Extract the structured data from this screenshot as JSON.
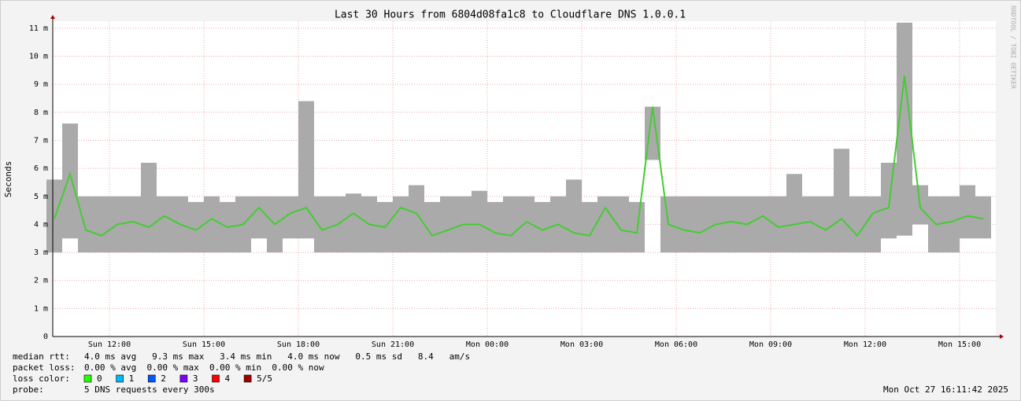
{
  "chart_data": {
    "type": "smoke",
    "title": "Last 30 Hours from 6804d08fa1c8 to Cloudflare DNS 1.0.0.1",
    "y_label": "Seconds",
    "watermark": "RRDTOOL / TOBI OETIKER",
    "x": [
      10.25,
      10.75,
      11.25,
      11.75,
      12.25,
      12.75,
      13.25,
      13.75,
      14.25,
      14.75,
      15.25,
      15.75,
      16.25,
      16.75,
      17.25,
      17.75,
      18.25,
      18.75,
      19.25,
      19.75,
      20.25,
      20.75,
      21.25,
      21.75,
      22.25,
      22.75,
      23.25,
      23.75,
      24.25,
      24.75,
      25.25,
      25.75,
      26.25,
      26.75,
      27.25,
      27.75,
      28.25,
      28.75,
      29.25,
      29.75,
      30.25,
      30.75,
      31.25,
      31.75,
      32.25,
      32.75,
      33.25,
      33.75,
      34.25,
      34.75,
      35.25,
      35.75,
      36.25,
      36.75,
      37.25,
      37.75,
      38.25,
      38.75,
      39.25,
      39.75
    ],
    "values": [
      0.0042,
      0.0058,
      0.0038,
      0.0036,
      0.004,
      0.0041,
      0.0039,
      0.0043,
      0.004,
      0.0038,
      0.0042,
      0.0039,
      0.004,
      0.0046,
      0.004,
      0.0044,
      0.0046,
      0.0038,
      0.004,
      0.0044,
      0.004,
      0.0039,
      0.0046,
      0.0044,
      0.0036,
      0.0038,
      0.004,
      0.004,
      0.0037,
      0.0036,
      0.0041,
      0.0038,
      0.004,
      0.0037,
      0.0036,
      0.0046,
      0.0038,
      0.0037,
      0.0082,
      0.004,
      0.0038,
      0.0037,
      0.004,
      0.0041,
      0.004,
      0.0043,
      0.0039,
      0.004,
      0.0041,
      0.0038,
      0.0042,
      0.0036,
      0.0044,
      0.0046,
      0.0093,
      0.0046,
      0.004,
      0.0041,
      0.0043,
      0.0042
    ],
    "min_values": [
      0.003,
      0.0035,
      0.003,
      0.003,
      0.003,
      0.003,
      0.003,
      0.003,
      0.003,
      0.003,
      0.003,
      0.003,
      0.003,
      0.0035,
      0.003,
      0.0035,
      0.0035,
      0.003,
      0.003,
      0.003,
      0.003,
      0.003,
      0.003,
      0.003,
      0.003,
      0.003,
      0.003,
      0.003,
      0.003,
      0.003,
      0.003,
      0.003,
      0.003,
      0.003,
      0.003,
      0.003,
      0.003,
      0.003,
      0.0063,
      0.003,
      0.003,
      0.003,
      0.003,
      0.003,
      0.003,
      0.003,
      0.003,
      0.003,
      0.003,
      0.003,
      0.003,
      0.003,
      0.003,
      0.0035,
      0.0036,
      0.004,
      0.003,
      0.003,
      0.0035,
      0.0035
    ],
    "max_values": [
      0.0056,
      0.0076,
      0.005,
      0.005,
      0.005,
      0.005,
      0.0062,
      0.005,
      0.005,
      0.0048,
      0.005,
      0.0048,
      0.005,
      0.005,
      0.005,
      0.005,
      0.0084,
      0.005,
      0.005,
      0.0051,
      0.005,
      0.0048,
      0.005,
      0.0054,
      0.0048,
      0.005,
      0.005,
      0.0052,
      0.0048,
      0.005,
      0.005,
      0.0048,
      0.005,
      0.0056,
      0.0048,
      0.005,
      0.005,
      0.0048,
      0.0082,
      0.005,
      0.005,
      0.005,
      0.005,
      0.005,
      0.005,
      0.005,
      0.005,
      0.0058,
      0.005,
      0.005,
      0.0067,
      0.005,
      0.005,
      0.0062,
      0.0112,
      0.0054,
      0.005,
      0.005,
      0.0054,
      0.005
    ],
    "color": "#44cc33",
    "smoke_color": "#aaaaaa",
    "core_color": "#555555",
    "xlim": [
      10.2,
      40.15
    ],
    "xticks": [
      {
        "value": 12,
        "label": "Sun 12:00"
      },
      {
        "value": 15,
        "label": "Sun 15:00"
      },
      {
        "value": 18,
        "label": "Sun 18:00"
      },
      {
        "value": 21,
        "label": "Sun 21:00"
      },
      {
        "value": 24,
        "label": "Mon 00:00"
      },
      {
        "value": 27,
        "label": "Mon 03:00"
      },
      {
        "value": 30,
        "label": "Mon 06:00"
      },
      {
        "value": 33,
        "label": "Mon 09:00"
      },
      {
        "value": 36,
        "label": "Mon 12:00"
      },
      {
        "value": 39,
        "label": "Mon 15:00"
      }
    ],
    "ylim": [
      0,
      0.01125
    ],
    "yticks": [
      0,
      {
        "value": 0.001,
        "label": "1 m"
      },
      {
        "value": 0.002,
        "label": "2 m"
      },
      {
        "value": 0.003,
        "label": "3 m"
      },
      {
        "value": 0.004,
        "label": "4 m"
      },
      {
        "value": 0.005,
        "label": "5 m"
      },
      {
        "value": 0.006,
        "label": "6 m"
      },
      {
        "value": 0.007,
        "label": "7 m"
      },
      {
        "value": 0.008,
        "label": "8 m"
      },
      {
        "value": 0.009,
        "label": "9 m"
      },
      {
        "value": 0.01,
        "label": "10 m"
      },
      {
        "value": 0.011,
        "label": "11 m"
      }
    ],
    "grid": true
  },
  "footer": {
    "stats": [
      {
        "label": "median rtt:",
        "text": "4.0 ms avg   9.3 ms max   3.4 ms min   4.0 ms now   0.5 ms sd   8.4   am/s"
      },
      {
        "label": "packet loss:",
        "text": "0.00 % avg  0.00 % max  0.00 % min  0.00 % now"
      }
    ],
    "loss_color": {
      "label": "loss color:",
      "entries": [
        {
          "label": "0",
          "color": "#26ff00"
        },
        {
          "label": "1",
          "color": "#00b8ff"
        },
        {
          "label": "2",
          "color": "#0059ff"
        },
        {
          "label": "3",
          "color": "#7e00ff"
        },
        {
          "label": "4",
          "color": "#ff0000"
        },
        {
          "label": "5/5",
          "color": "#a10000"
        }
      ]
    },
    "probe": {
      "label": "probe:",
      "text": "5 DNS requests every 300s"
    },
    "timestamp": "Mon Oct 27 16:11:42 2025"
  }
}
